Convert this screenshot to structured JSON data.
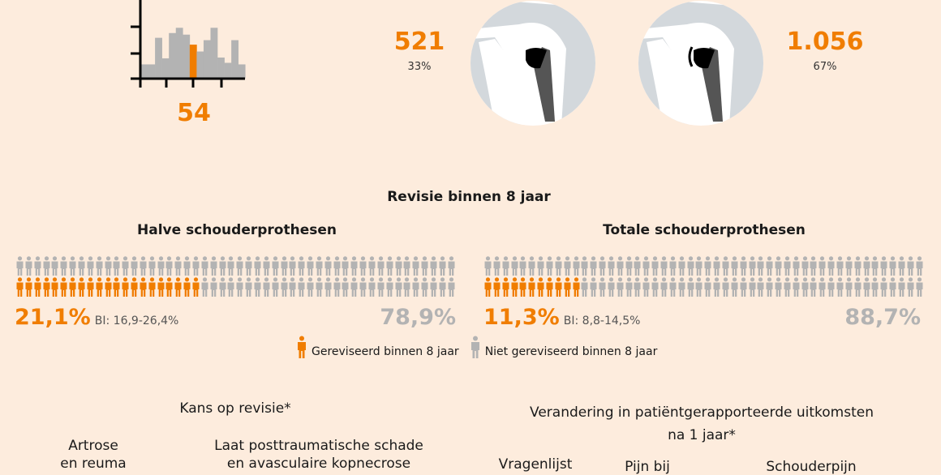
{
  "colors": {
    "background": "#fdecdd",
    "accent": "#f07d00",
    "neutral": "#b3b3b3",
    "circle": "#ffffff",
    "bone": "#d3d8dc"
  },
  "histogram": {
    "type": "bar",
    "values": [
      0.54,
      0.54,
      1.55,
      0.77,
      1.73,
      1.93,
      1.67,
      1.29,
      1.03,
      1.46,
      1.93,
      0.8,
      0.6,
      1.46,
      0.54
    ],
    "highlight_index": 7,
    "label": "54"
  },
  "counts": {
    "half": {
      "value": "521",
      "percent": "33%",
      "icon": "half-shoulder-prosthesis-icon"
    },
    "total": {
      "value": "1.056",
      "percent": "67%",
      "icon": "total-shoulder-prosthesis-icon"
    }
  },
  "revision": {
    "title": "Revisie binnen 8 jaar",
    "groups": [
      {
        "title": "Halve schouderprothesen",
        "revised_percent": 21.1,
        "revised_label": "21,1%",
        "ci": "BI: 16,9-26,4%",
        "not_revised_label": "78,9%"
      },
      {
        "title": "Totale schouderprothesen",
        "revised_percent": 11.3,
        "revised_label": "11,3%",
        "ci": "BI: 8,8-14,5%",
        "not_revised_label": "88,7%"
      }
    ],
    "legend": {
      "revised": "Gereviseerd binnen 8 jaar",
      "not_revised": "Niet gereviseerd binnen 8 jaar"
    }
  },
  "kans": {
    "title": "Kans op revisie*",
    "col1": [
      "Artrose",
      "en reuma"
    ],
    "col2": [
      "Laat posttraumatische schade",
      "en avasculaire kopnecrose"
    ]
  },
  "proms": {
    "title": [
      "Verandering in patiëntgerapporteerde uitkomsten",
      "na 1 jaar*"
    ],
    "cols": [
      "Vragenlijst",
      "Pijn bij",
      "Schouderpijn"
    ]
  }
}
